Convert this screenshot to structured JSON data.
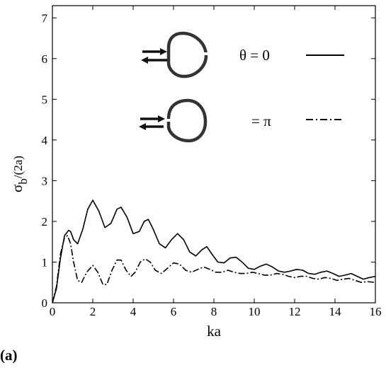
{
  "panel_label": "(a)",
  "chart_data": {
    "type": "line",
    "title": "",
    "xlabel": "ka",
    "ylabel": "σ",
    "ylabel_sub": "b",
    "ylabel_suffix": "/(2a)",
    "xlim": [
      0,
      16
    ],
    "ylim": [
      0,
      7.3
    ],
    "x_ticks": [
      0,
      2,
      4,
      6,
      8,
      10,
      12,
      14,
      16
    ],
    "y_ticks": [
      0,
      1,
      2,
      3,
      4,
      5,
      6,
      7
    ],
    "grid": false,
    "legend_position": "top-right",
    "series": [
      {
        "name": "θ = 0",
        "style": "solid",
        "x": [
          0,
          0.2,
          0.4,
          0.6,
          0.8,
          0.9,
          1.05,
          1.25,
          1.5,
          1.75,
          2.0,
          2.3,
          2.6,
          2.9,
          3.2,
          3.4,
          3.7,
          4.0,
          4.3,
          4.55,
          4.75,
          5.0,
          5.3,
          5.6,
          5.9,
          6.2,
          6.5,
          6.8,
          7.1,
          7.4,
          7.65,
          7.9,
          8.2,
          8.5,
          8.8,
          9.1,
          9.4,
          9.7,
          10.0,
          10.3,
          10.6,
          10.9,
          11.2,
          11.5,
          11.8,
          12.1,
          12.4,
          12.7,
          13.0,
          13.3,
          13.6,
          13.9,
          14.2,
          14.5,
          14.8,
          15.1,
          15.4,
          15.7,
          16.0
        ],
        "y": [
          0,
          0.35,
          1.1,
          1.65,
          1.78,
          1.75,
          1.55,
          1.45,
          1.8,
          2.3,
          2.52,
          2.25,
          1.85,
          1.95,
          2.3,
          2.35,
          2.1,
          1.7,
          1.75,
          2.0,
          2.05,
          1.8,
          1.45,
          1.35,
          1.55,
          1.7,
          1.55,
          1.25,
          1.15,
          1.3,
          1.38,
          1.2,
          1.0,
          0.98,
          1.1,
          1.12,
          1.0,
          0.85,
          0.82,
          0.9,
          0.95,
          0.88,
          0.78,
          0.75,
          0.78,
          0.82,
          0.8,
          0.72,
          0.7,
          0.75,
          0.78,
          0.72,
          0.65,
          0.68,
          0.72,
          0.65,
          0.58,
          0.62,
          0.65
        ]
      },
      {
        "name": "= π",
        "style": "dashdot",
        "x": [
          0,
          0.2,
          0.4,
          0.6,
          0.75,
          0.9,
          1.05,
          1.25,
          1.45,
          1.7,
          2.0,
          2.25,
          2.5,
          2.7,
          2.95,
          3.2,
          3.4,
          3.65,
          3.9,
          4.1,
          4.35,
          4.6,
          4.85,
          5.1,
          5.4,
          5.7,
          6.0,
          6.3,
          6.6,
          6.9,
          7.2,
          7.5,
          7.8,
          8.1,
          8.4,
          8.7,
          9.0,
          9.3,
          9.6,
          9.9,
          10.2,
          10.5,
          10.8,
          11.1,
          11.4,
          11.7,
          12.0,
          12.3,
          12.6,
          12.9,
          13.2,
          13.5,
          13.8,
          14.1,
          14.4,
          14.7,
          15.0,
          15.3,
          15.6,
          16.0
        ],
        "y": [
          0,
          0.4,
          1.2,
          1.6,
          1.65,
          1.45,
          1.0,
          0.55,
          0.5,
          0.75,
          0.92,
          0.75,
          0.45,
          0.45,
          0.8,
          1.05,
          1.05,
          0.8,
          0.65,
          0.75,
          1.0,
          1.08,
          1.0,
          0.8,
          0.72,
          0.85,
          0.98,
          0.95,
          0.8,
          0.75,
          0.82,
          0.88,
          0.82,
          0.75,
          0.75,
          0.8,
          0.75,
          0.72,
          0.72,
          0.75,
          0.72,
          0.68,
          0.68,
          0.72,
          0.7,
          0.65,
          0.62,
          0.65,
          0.65,
          0.6,
          0.58,
          0.62,
          0.6,
          0.55,
          0.58,
          0.6,
          0.55,
          0.5,
          0.52,
          0.5
        ]
      }
    ]
  }
}
